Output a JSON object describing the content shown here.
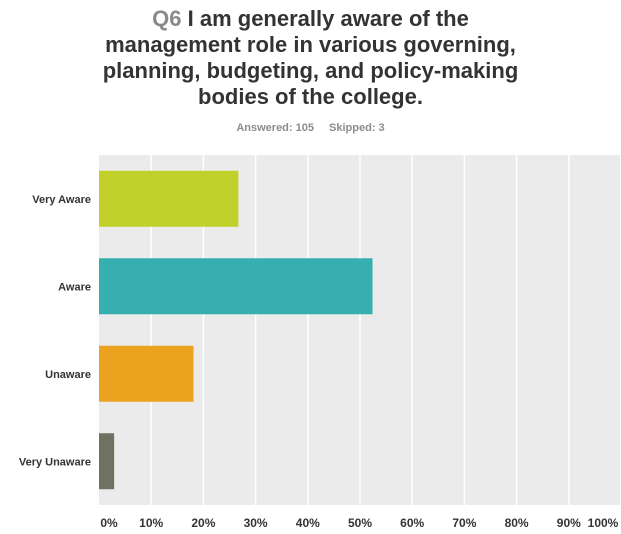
{
  "question": {
    "number": "Q6",
    "title_lines": [
      "I am generally aware of the",
      "management role in various governing,",
      "planning, budgeting, and policy-making",
      "bodies of the college."
    ]
  },
  "meta": {
    "answered": "Answered: 105",
    "skipped": "Skipped: 3"
  },
  "chart_data": {
    "type": "bar",
    "orientation": "horizontal",
    "categories": [
      "Very Aware",
      "Aware",
      "Unaware",
      "Very Unaware"
    ],
    "values": [
      26.7,
      52.4,
      18.1,
      2.9
    ],
    "unit": "%",
    "xlim": [
      0,
      100
    ],
    "x_ticks": [
      "0%",
      "10%",
      "20%",
      "30%",
      "40%",
      "50%",
      "60%",
      "70%",
      "80%",
      "90%",
      "100%"
    ],
    "grid": true,
    "legend": "none"
  },
  "colors": {
    "bars": [
      "#c1d02a",
      "#37afb1",
      "#eba21f",
      "#6f7263"
    ],
    "plot_background": "#ebebeb",
    "gridline": "#ffffff"
  }
}
